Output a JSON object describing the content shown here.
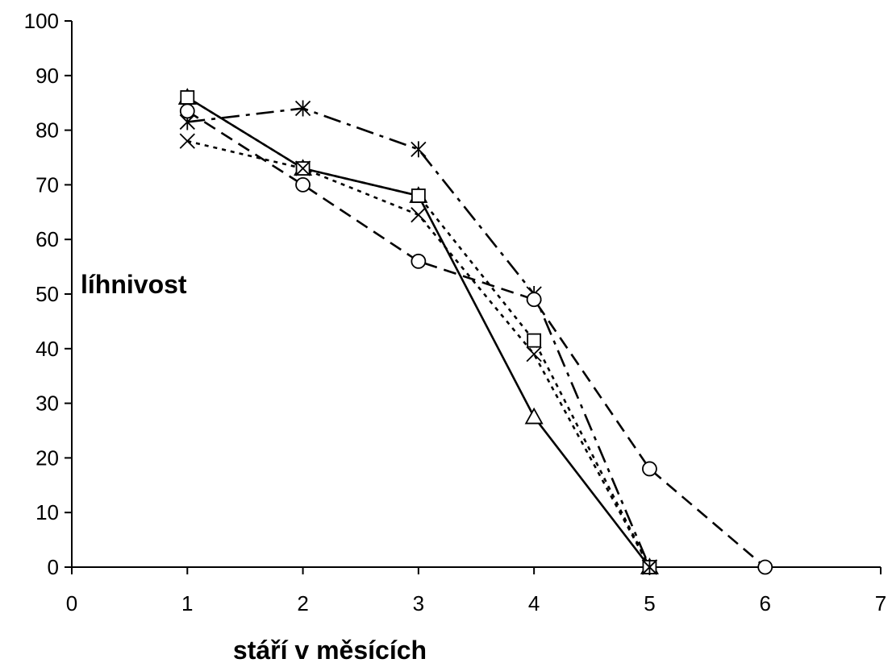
{
  "chart_data": {
    "type": "line",
    "title": "",
    "xlabel": "stáří v měsících",
    "ylabel": "líhnivost",
    "xlim": [
      0,
      7
    ],
    "ylim": [
      0,
      100
    ],
    "x_ticks": [
      "0",
      "1",
      "2",
      "3",
      "4",
      "5",
      "6",
      "7"
    ],
    "y_ticks": [
      "0",
      "10",
      "20",
      "30",
      "40",
      "50",
      "60",
      "70",
      "80",
      "90",
      "100"
    ],
    "grid": false,
    "legend": "none",
    "series": [
      {
        "marker": "triangle",
        "line_style": "solid",
        "color": "#000000",
        "points": [
          [
            1,
            86
          ],
          [
            2,
            73
          ],
          [
            3,
            68
          ],
          [
            4,
            27.5
          ],
          [
            5,
            0
          ]
        ]
      },
      {
        "marker": "square",
        "line_style": "dotted",
        "color": "#000000",
        "points": [
          [
            1,
            86
          ],
          [
            2,
            73
          ],
          [
            3,
            68
          ],
          [
            4,
            41.5
          ],
          [
            5,
            0
          ]
        ]
      },
      {
        "marker": "cross",
        "line_style": "dotted",
        "color": "#000000",
        "points": [
          [
            1,
            78
          ],
          [
            2,
            73
          ],
          [
            3,
            64.5
          ],
          [
            4,
            39
          ],
          [
            5,
            0
          ]
        ]
      },
      {
        "marker": "asterisk",
        "line_style": "dash-dot",
        "color": "#000000",
        "points": [
          [
            1,
            81.5
          ],
          [
            2,
            84
          ],
          [
            3,
            76.5
          ],
          [
            4,
            50
          ],
          [
            5,
            0
          ]
        ]
      },
      {
        "marker": "circle",
        "line_style": "dashed",
        "color": "#000000",
        "points": [
          [
            1,
            83.5
          ],
          [
            2,
            70
          ],
          [
            3,
            56
          ],
          [
            4,
            49
          ],
          [
            5,
            18
          ],
          [
            6,
            0
          ]
        ]
      }
    ]
  }
}
